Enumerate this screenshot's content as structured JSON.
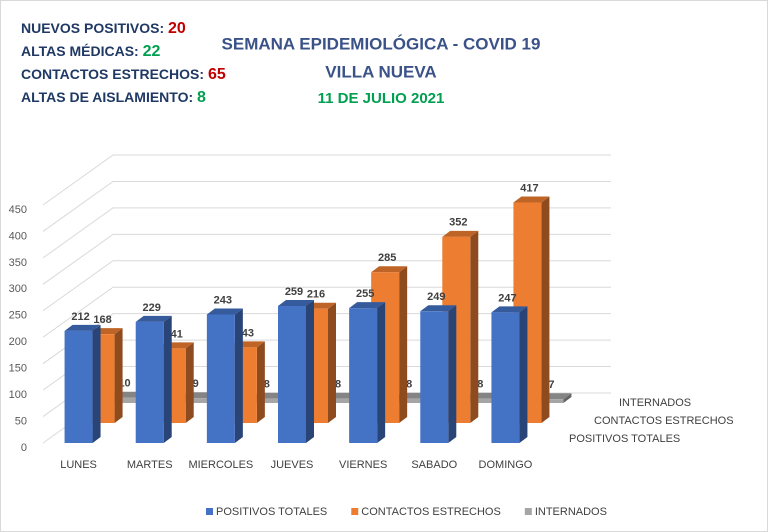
{
  "summary": [
    {
      "label": "NUEVOS POSITIVOS: ",
      "value": 20,
      "color": "#c00000"
    },
    {
      "label": "ALTAS MÉDICAS: ",
      "value": 22,
      "color": "#00a050"
    },
    {
      "label": "CONTACTOS ESTRECHOS: ",
      "value": 65,
      "color": "#c00000"
    },
    {
      "label": "ALTAS DE AISLAMIENTO: ",
      "value": 8,
      "color": "#00a050"
    }
  ],
  "chart_data": {
    "type": "bar3d",
    "title": "SEMANA EPIDEMIOLÓGICA - COVID 19",
    "subtitle": "VILLA NUEVA",
    "date": "11 DE JULIO 2021",
    "categories": [
      "LUNES",
      "MARTES",
      "MIERCOLES",
      "JUEVES",
      "VIERNES",
      "SABADO",
      "DOMINGO"
    ],
    "series": [
      {
        "name": "POSITIVOS TOTALES",
        "color": "#4472c4",
        "values": [
          212,
          229,
          243,
          259,
          255,
          249,
          247
        ]
      },
      {
        "name": "CONTACTOS ESTRECHOS",
        "color": "#ed7d31",
        "values": [
          168,
          141,
          143,
          216,
          285,
          352,
          417
        ]
      },
      {
        "name": "INTERNADOS",
        "color": "#a5a5a5",
        "values": [
          10,
          9,
          8,
          8,
          8,
          8,
          7
        ]
      }
    ],
    "ylim": [
      0,
      450
    ],
    "yticks": [
      0,
      50,
      100,
      150,
      200,
      250,
      300,
      350,
      400,
      450
    ],
    "grid": true
  }
}
